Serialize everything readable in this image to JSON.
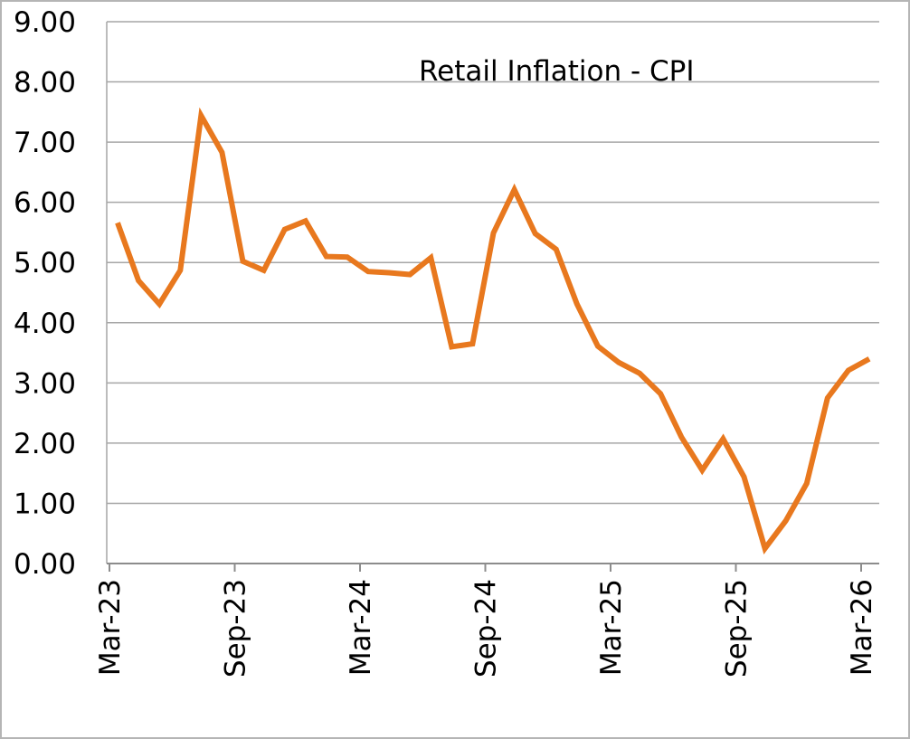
{
  "chart_data": {
    "type": "line",
    "title": "Retail Inflation - CPI",
    "xlabel": "",
    "ylabel": "",
    "ylim": [
      0,
      9
    ],
    "y_ticks": [
      "0.00",
      "1.00",
      "2.00",
      "3.00",
      "4.00",
      "5.00",
      "6.00",
      "7.00",
      "8.00",
      "9.00"
    ],
    "x_tick_labels": [
      "Mar-23",
      "Sep-23",
      "Mar-24",
      "Sep-24",
      "Mar-25",
      "Sep-25",
      "Mar-26"
    ],
    "grid": true,
    "legend": "none",
    "series": [
      {
        "color": "#E8781E",
        "x": [
          "Mar-23",
          "Apr-23",
          "May-23",
          "Jun-23",
          "Jul-23",
          "Aug-23",
          "Sep-23",
          "Oct-23",
          "Nov-23",
          "Dec-23",
          "Jan-24",
          "Feb-24",
          "Mar-24",
          "Apr-24",
          "May-24",
          "Jun-24",
          "Jul-24",
          "Aug-24",
          "Sep-24",
          "Oct-24",
          "Nov-24",
          "Dec-24",
          "Jan-25",
          "Feb-25",
          "Mar-25",
          "Apr-25",
          "May-25",
          "Jun-25",
          "Jul-25",
          "Aug-25",
          "Sep-25",
          "Oct-25",
          "Nov-25",
          "Dec-25",
          "Jan-26",
          "Feb-26",
          "Mar-26"
        ],
        "values": [
          5.66,
          4.7,
          4.31,
          4.87,
          7.44,
          6.83,
          5.02,
          4.87,
          5.55,
          5.69,
          5.1,
          5.09,
          4.85,
          4.83,
          4.8,
          5.08,
          3.6,
          3.65,
          5.49,
          6.21,
          5.48,
          5.22,
          4.31,
          3.61,
          3.34,
          3.16,
          2.82,
          2.1,
          1.55,
          2.07,
          1.44,
          0.25,
          0.71,
          1.33,
          2.75,
          3.21,
          3.4
        ]
      }
    ]
  }
}
